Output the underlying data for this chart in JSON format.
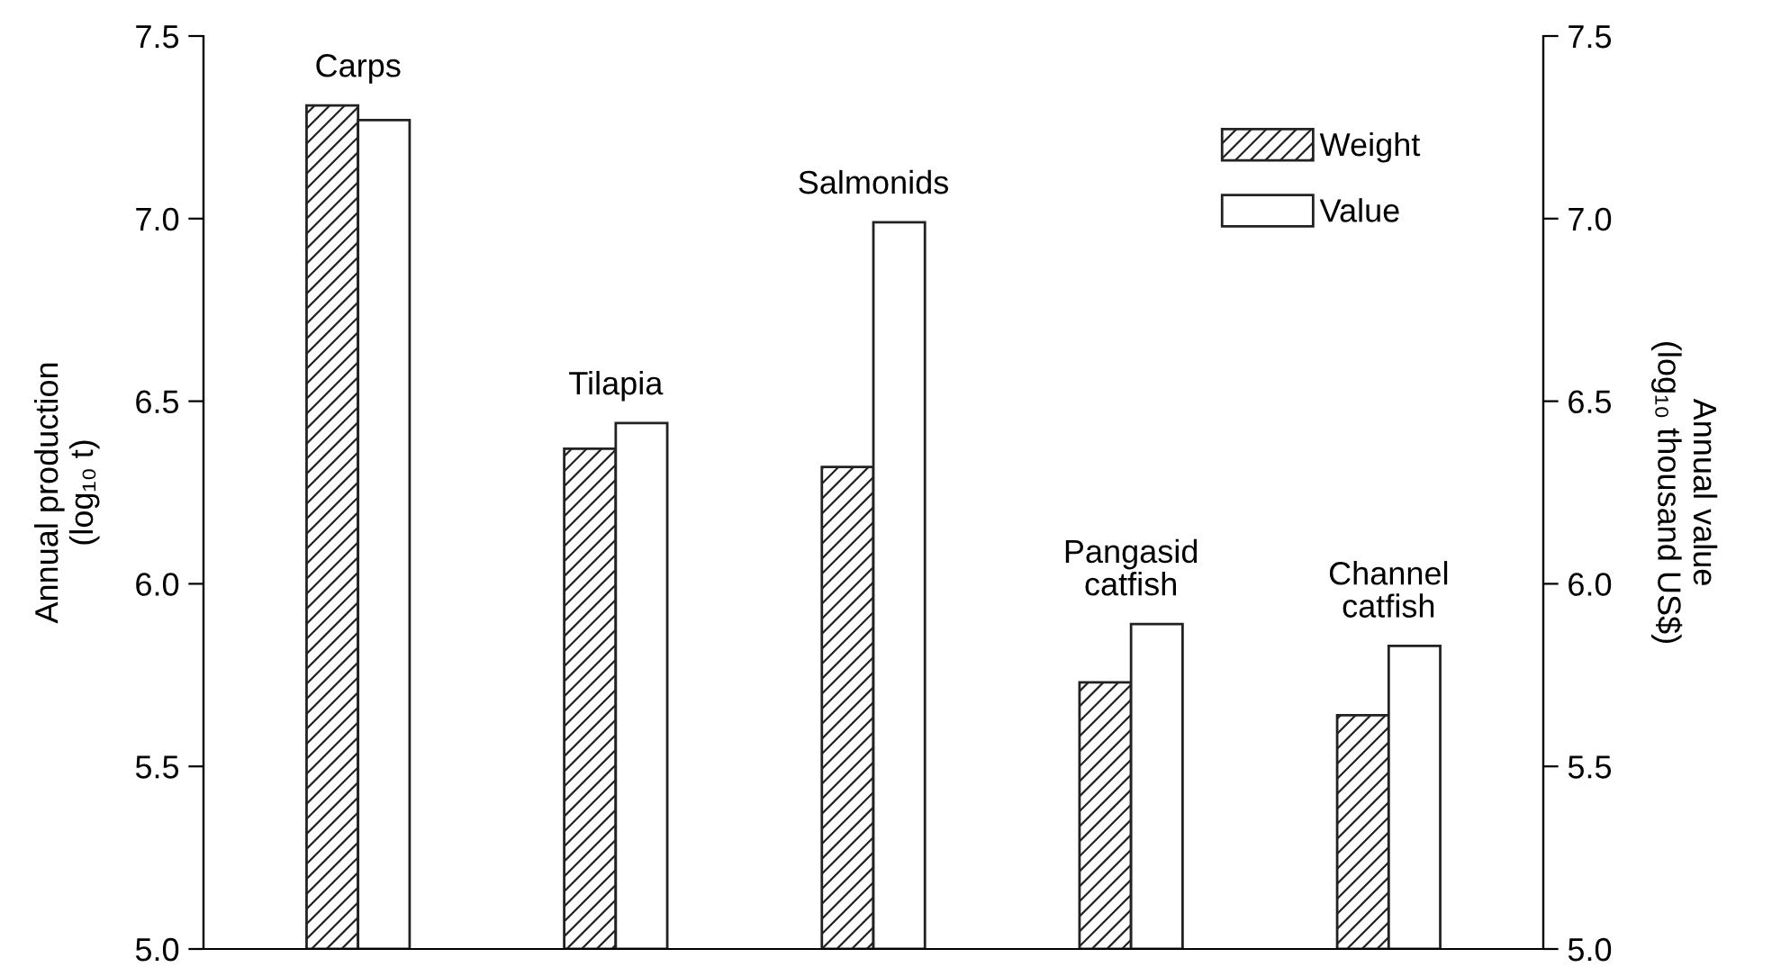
{
  "chart_data": {
    "type": "bar",
    "categories": [
      "Carps",
      "Tilapia",
      "Salmonids",
      "Pangasid\ncatfish",
      "Channel\ncatfish"
    ],
    "series": [
      {
        "name": "Weight",
        "color": "#222222",
        "values": [
          7.31,
          6.37,
          6.32,
          5.73,
          5.64
        ]
      },
      {
        "name": "Value",
        "color": "#ffffff",
        "axis": "y2",
        "values": [
          7.27,
          6.44,
          6.99,
          5.89,
          5.83
        ]
      }
    ],
    "ylabel": "Annual production\n(log₁₀ t)",
    "y2label": "Annual value\n(log₁₀ thousand US$)",
    "ylim": [
      5.0,
      7.5
    ],
    "yticks": [
      {
        "value": 5.0,
        "label": "5.0"
      },
      {
        "value": 5.5,
        "label": "5.5"
      },
      {
        "value": 6.0,
        "label": "6.0"
      },
      {
        "value": 6.5,
        "label": "6.5"
      },
      {
        "value": 7.0,
        "label": "7.0"
      },
      {
        "value": 7.5,
        "label": "7.5"
      }
    ],
    "y2lim": [
      5.0,
      7.5
    ],
    "y2ticks": [
      {
        "value": 5.0,
        "label": "5.0"
      },
      {
        "value": 5.5,
        "label": "5.5"
      },
      {
        "value": 6.0,
        "label": "6.0"
      },
      {
        "value": 6.5,
        "label": "6.5"
      },
      {
        "value": 7.0,
        "label": "7.0"
      },
      {
        "value": 7.5,
        "label": "7.5"
      }
    ],
    "legend": "top right",
    "grid": false
  }
}
